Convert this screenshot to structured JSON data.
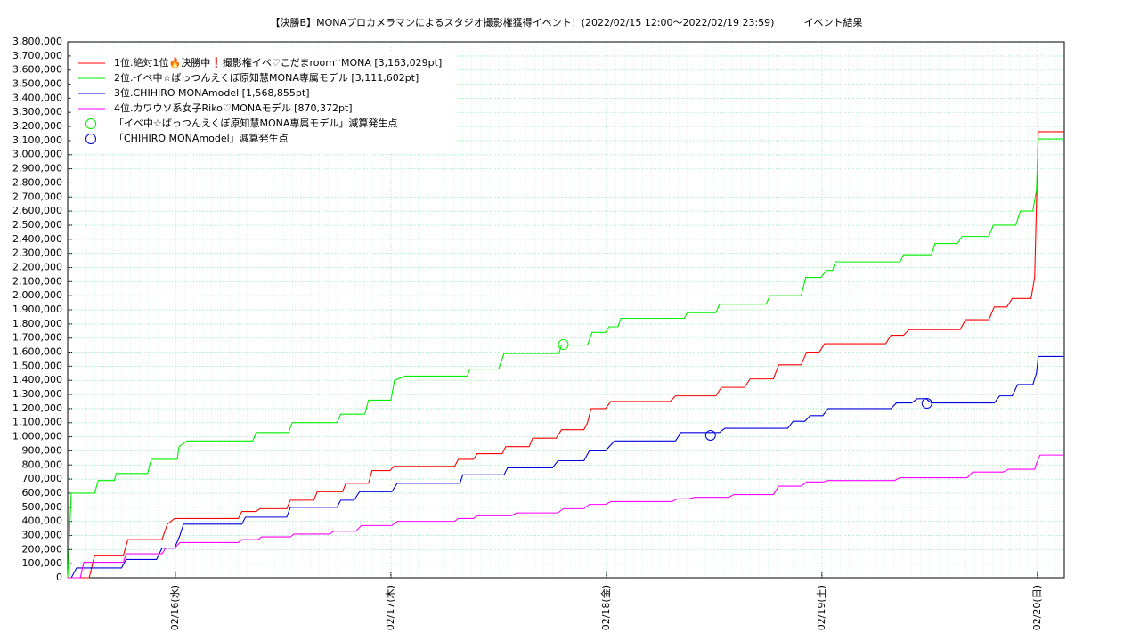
{
  "chart_data": {
    "type": "line",
    "title": "【決勝B】MONAプロカメラマンによるスタジオ撮影権獲得イベント！(2022/02/15 12:00〜2022/02/19 23:59)　　　イベント結果",
    "xlim": [
      0,
      111
    ],
    "xticks": [
      {
        "value": 12,
        "label": "02/16(水)"
      },
      {
        "value": 36,
        "label": "02/17(木)"
      },
      {
        "value": 60,
        "label": "02/18(金)"
      },
      {
        "value": 84,
        "label": "02/19(土)"
      },
      {
        "value": 108,
        "label": "02/20(日)"
      }
    ],
    "ylim": [
      0,
      3800000
    ],
    "yticks": [
      0,
      {
        "value": 100000,
        "label": "100,000"
      },
      {
        "value": 200000,
        "label": "200,000"
      },
      {
        "value": 300000,
        "label": "300,000"
      },
      {
        "value": 400000,
        "label": "400,000"
      },
      {
        "value": 500000,
        "label": "500,000"
      },
      {
        "value": 600000,
        "label": "600,000"
      },
      {
        "value": 700000,
        "label": "700,000"
      },
      {
        "value": 800000,
        "label": "800,000"
      },
      {
        "value": 900000,
        "label": "900,000"
      },
      {
        "value": 1000000,
        "label": "1,000,000"
      },
      {
        "value": 1100000,
        "label": "1,100,000"
      },
      {
        "value": 1200000,
        "label": "1,200,000"
      },
      {
        "value": 1300000,
        "label": "1,300,000"
      },
      {
        "value": 1400000,
        "label": "1,400,000"
      },
      {
        "value": 1500000,
        "label": "1,500,000"
      },
      {
        "value": 1600000,
        "label": "1,600,000"
      },
      {
        "value": 1700000,
        "label": "1,700,000"
      },
      {
        "value": 1800000,
        "label": "1,800,000"
      },
      {
        "value": 1900000,
        "label": "1,900,000"
      },
      {
        "value": 2000000,
        "label": "2,000,000"
      },
      {
        "value": 2100000,
        "label": "2,100,000"
      },
      {
        "value": 2200000,
        "label": "2,200,000"
      },
      {
        "value": 2300000,
        "label": "2,300,000"
      },
      {
        "value": 2400000,
        "label": "2,400,000"
      },
      {
        "value": 2500000,
        "label": "2,500,000"
      },
      {
        "value": 2600000,
        "label": "2,600,000"
      },
      {
        "value": 2700000,
        "label": "2,700,000"
      },
      {
        "value": 2800000,
        "label": "2,800,000"
      },
      {
        "value": 2900000,
        "label": "2,900,000"
      },
      {
        "value": 3000000,
        "label": "3,000,000"
      },
      {
        "value": 3100000,
        "label": "3,100,000"
      },
      {
        "value": 3200000,
        "label": "3,200,000"
      },
      {
        "value": 3300000,
        "label": "3,300,000"
      },
      {
        "value": 3400000,
        "label": "3,400,000"
      },
      {
        "value": 3500000,
        "label": "3,500,000"
      },
      {
        "value": 3600000,
        "label": "3,600,000"
      },
      {
        "value": 3700000,
        "label": "3,700,000"
      },
      {
        "value": 3800000,
        "label": "3,800,000"
      }
    ],
    "grid": true,
    "series": [
      {
        "name": "1位.絶対1位🔥決勝中❗撮影権イベ♡こだまroom∵MONA [3,163,029pt]",
        "color": "#ff0000",
        "x": [
          0,
          2.4,
          3,
          6.2,
          6.7,
          10.5,
          11.1,
          11.9,
          19,
          19.4,
          21,
          21.4,
          24.4,
          24.8,
          27.4,
          27.8,
          30.6,
          31,
          33.5,
          33.9,
          35.9,
          36.3,
          43.1,
          43.5,
          45.2,
          45.6,
          48.4,
          48.8,
          51.4,
          51.8,
          54.4,
          55,
          57.5,
          57.9,
          58.3,
          59.9,
          60.5,
          67.1,
          67.7,
          72.2,
          72.8,
          75.4,
          76,
          78.6,
          79.2,
          81.7,
          82.3,
          83.7,
          84.3,
          91.1,
          91.7,
          93.1,
          93.7,
          99.4,
          100,
          102.6,
          103.2,
          104.6,
          105.2,
          107.3,
          107.7,
          108.1,
          111
        ],
        "values": [
          0,
          0,
          160000,
          160000,
          270000,
          270000,
          380000,
          420000,
          420000,
          470000,
          470000,
          490000,
          490000,
          550000,
          550000,
          610000,
          610000,
          670000,
          670000,
          760000,
          760000,
          790000,
          790000,
          840000,
          840000,
          880000,
          880000,
          930000,
          930000,
          990000,
          990000,
          1050000,
          1050000,
          1100000,
          1200000,
          1200000,
          1250000,
          1250000,
          1290000,
          1290000,
          1350000,
          1350000,
          1410000,
          1410000,
          1510000,
          1510000,
          1600000,
          1600000,
          1660000,
          1660000,
          1720000,
          1720000,
          1760000,
          1760000,
          1830000,
          1830000,
          1920000,
          1920000,
          1980000,
          1980000,
          2130000,
          3163029,
          3163029
        ]
      },
      {
        "name": "2位.イベ中☆ばっつんえくぼ原知慧MONA専属モデル [3,111,602pt]",
        "color": "#00ee00",
        "x": [
          0,
          0.4,
          3,
          3.4,
          5.2,
          5.4,
          8.9,
          9.3,
          12.2,
          12.4,
          13.3,
          20.6,
          21,
          24.6,
          25,
          30,
          30.4,
          33.1,
          33.5,
          36,
          36.4,
          37.6,
          44.5,
          44.8,
          48,
          48.6,
          54.7,
          55,
          57.9,
          58.4,
          59.9,
          60.3,
          61.3,
          61.6,
          68.7,
          69,
          72.2,
          72.6,
          77.8,
          78.2,
          81.7,
          82.2,
          83.9,
          84.5,
          85.2,
          85.5,
          92.7,
          93.1,
          96.2,
          96.6,
          99.1,
          99.6,
          102.6,
          103.1,
          105.6,
          106.1,
          107.5,
          107.9,
          108.1,
          111
        ],
        "values": [
          0,
          600000,
          600000,
          690000,
          690000,
          740000,
          740000,
          840000,
          840000,
          930000,
          970000,
          970000,
          1030000,
          1030000,
          1100000,
          1100000,
          1160000,
          1160000,
          1260000,
          1260000,
          1400000,
          1430000,
          1430000,
          1480000,
          1480000,
          1590000,
          1590000,
          1650000,
          1650000,
          1740000,
          1740000,
          1780000,
          1780000,
          1840000,
          1840000,
          1880000,
          1880000,
          1940000,
          1940000,
          2000000,
          2000000,
          2130000,
          2130000,
          2180000,
          2180000,
          2240000,
          2240000,
          2290000,
          2290000,
          2370000,
          2370000,
          2420000,
          2420000,
          2500000,
          2500000,
          2600000,
          2600000,
          2750000,
          3111602,
          3111602
        ]
      },
      {
        "name": "3位.CHIHIRO MONAmodel [1,568,855pt]",
        "color": "#0000dd",
        "x": [
          0,
          0.4,
          1,
          6,
          6.5,
          9.9,
          10.5,
          11.9,
          12.5,
          12.9,
          19.4,
          19.8,
          24.4,
          24.8,
          30,
          30.4,
          31.9,
          32.5,
          36.1,
          36.7,
          43.7,
          44,
          48.6,
          49,
          54,
          54.6,
          57.5,
          58.1,
          59.9,
          60.9,
          67.7,
          68.3,
          72.6,
          73.2,
          80.2,
          80.8,
          82.1,
          82.7,
          84.1,
          84.7,
          91.7,
          92.3,
          94,
          94.6,
          95.6,
          96.2,
          103.2,
          103.8,
          105.2,
          105.8,
          107.5,
          107.9,
          108.1,
          111
        ],
        "values": [
          0,
          0,
          70000,
          70000,
          130000,
          130000,
          210000,
          210000,
          300000,
          380000,
          380000,
          430000,
          430000,
          500000,
          500000,
          550000,
          550000,
          610000,
          610000,
          670000,
          670000,
          730000,
          730000,
          780000,
          780000,
          830000,
          830000,
          900000,
          900000,
          970000,
          970000,
          1030000,
          1030000,
          1060000,
          1060000,
          1110000,
          1110000,
          1150000,
          1150000,
          1200000,
          1200000,
          1240000,
          1240000,
          1270000,
          1270000,
          1240000,
          1240000,
          1290000,
          1290000,
          1370000,
          1370000,
          1450000,
          1568855,
          1568855
        ]
      },
      {
        "name": "4位.カワウソ系女子Riko♡MONAモデル [870,372pt]",
        "color": "#ff00ff",
        "x": [
          0,
          1.4,
          1.8,
          6.2,
          6.5,
          10.5,
          10.9,
          11.9,
          12.5,
          19,
          19.4,
          21.2,
          21.6,
          24.8,
          25.2,
          29.2,
          29.6,
          32.1,
          32.7,
          36.1,
          36.7,
          43.1,
          43.5,
          45.2,
          45.6,
          49.4,
          50,
          54.6,
          55.2,
          57.5,
          58.1,
          59.9,
          60.5,
          67.3,
          67.9,
          69.2,
          69.8,
          73.6,
          74.2,
          78.6,
          79.2,
          81.7,
          82.3,
          84.1,
          84.7,
          92.1,
          92.7,
          100.2,
          100.8,
          104.2,
          104.8,
          107.7,
          107.9,
          108.3,
          111
        ],
        "values": [
          0,
          0,
          110000,
          110000,
          170000,
          170000,
          210000,
          210000,
          250000,
          250000,
          270000,
          270000,
          290000,
          290000,
          310000,
          310000,
          330000,
          330000,
          370000,
          370000,
          400000,
          400000,
          420000,
          420000,
          440000,
          440000,
          460000,
          460000,
          490000,
          490000,
          520000,
          520000,
          540000,
          540000,
          560000,
          560000,
          570000,
          570000,
          590000,
          590000,
          650000,
          650000,
          680000,
          680000,
          690000,
          690000,
          710000,
          710000,
          750000,
          750000,
          770000,
          770000,
          810000,
          870372,
          870372
        ]
      }
    ],
    "markers": [
      {
        "name": "「イベ中☆ばっつんえくぼ原知慧MONA専属モデル」減算発生点",
        "color": "#00ee00",
        "x": [
          55.2
        ],
        "values": [
          1654000
        ]
      },
      {
        "name": "「CHIHIRO MONAmodel」減算発生点",
        "color": "#0000dd",
        "x": [
          71.6,
          95.7
        ],
        "values": [
          1010000,
          1237000
        ]
      }
    ]
  }
}
